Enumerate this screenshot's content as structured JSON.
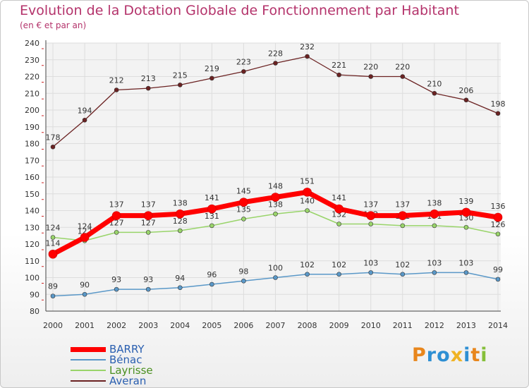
{
  "header": {
    "title": "Evolution de la Dotation Globale de Fonctionnement par Habitant",
    "subtitle": "(en € et par an)"
  },
  "logo": {
    "text": "Proxiti",
    "colors": [
      "#e8861c",
      "#2e8fd3",
      "#2e8fd3",
      "#f0b323",
      "#2e8fd3",
      "#e8861c",
      "#86bf3a"
    ]
  },
  "chart_data": {
    "type": "line",
    "title": "Evolution de la Dotation Globale de Fonctionnement par Habitant",
    "subtitle": "(en € et par an)",
    "x": [
      "2000",
      "2001",
      "2002",
      "2003",
      "2004",
      "2005",
      "2006",
      "2007",
      "2008",
      "2009",
      "2010",
      "2011",
      "2012",
      "2013",
      "2014"
    ],
    "ylim": [
      80,
      240
    ],
    "yticks": [
      80,
      90,
      100,
      110,
      120,
      130,
      140,
      150,
      160,
      170,
      180,
      190,
      200,
      210,
      220,
      230,
      240
    ],
    "grid": true,
    "legend_position": "bottom-left",
    "series": [
      {
        "name": "Averan",
        "color": "#6b2222",
        "values": [
          178,
          194,
          212,
          213,
          215,
          219,
          223,
          228,
          232,
          221,
          220,
          220,
          210,
          206,
          198
        ]
      },
      {
        "name": "Layrisse",
        "color": "#99d46a",
        "values": [
          124,
          122,
          127,
          127,
          128,
          131,
          135,
          138,
          140,
          132,
          132,
          131,
          131,
          130,
          126
        ]
      },
      {
        "name": "Bénac",
        "color": "#5a98c8",
        "values": [
          89,
          90,
          93,
          93,
          94,
          96,
          98,
          100,
          102,
          102,
          103,
          102,
          103,
          103,
          99
        ]
      },
      {
        "name": "BARRY",
        "color": "#ff0000",
        "values": [
          114,
          124,
          137,
          137,
          138,
          141,
          145,
          148,
          151,
          141,
          137,
          137,
          138,
          139,
          136
        ]
      }
    ],
    "legend_order": [
      "BARRY",
      "Bénac",
      "Layrisse",
      "Averan"
    ]
  }
}
